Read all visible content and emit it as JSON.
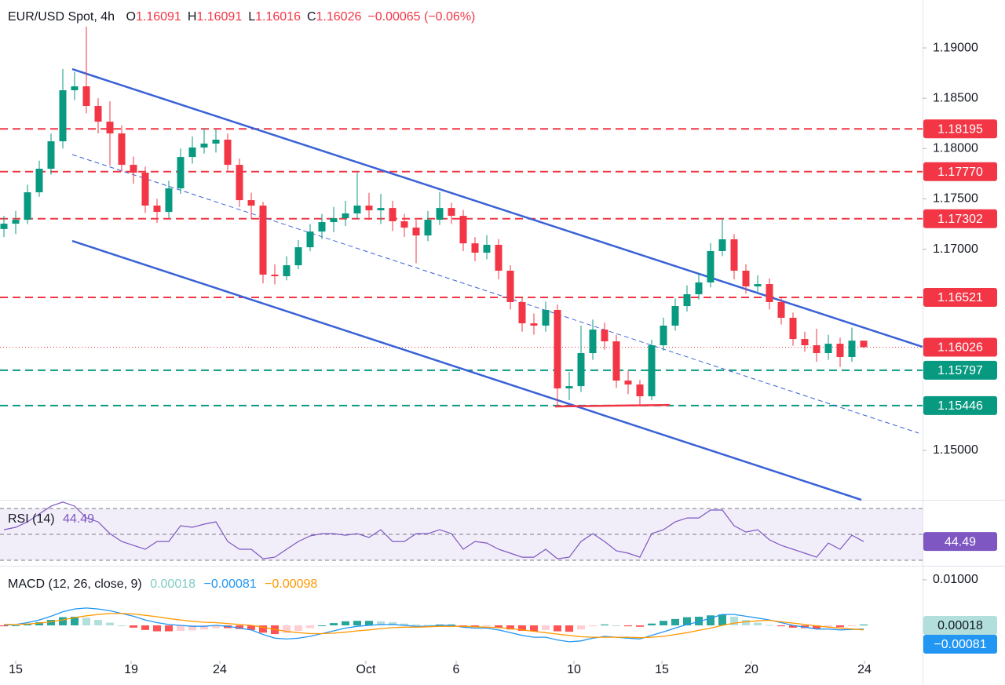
{
  "chart_data": [
    {
      "type": "candlestick",
      "title": "EUR/USD Spot, 4h",
      "legend": [
        {
          "key": "O",
          "value": "1.16091"
        },
        {
          "key": "H",
          "value": "1.16091"
        },
        {
          "key": "L",
          "value": "1.16016"
        },
        {
          "key": "C",
          "value": "1.16026"
        }
      ],
      "change": "−0.00065 (−0.06%)",
      "up_color": "#089981",
      "down_color": "#f23645",
      "xlim": [
        -0.333,
        78
      ],
      "xticks": [
        {
          "value": 1,
          "label": "15"
        },
        {
          "value": 10.8,
          "label": "19"
        },
        {
          "value": 18.33,
          "label": "24"
        },
        {
          "value": 30.73,
          "label": "Oct"
        },
        {
          "value": 38.4,
          "label": "6"
        },
        {
          "value": 48.4,
          "label": "10"
        },
        {
          "value": 55.87,
          "label": "15"
        },
        {
          "value": 63.47,
          "label": "20"
        },
        {
          "value": 73.07,
          "label": "24"
        }
      ],
      "ylim": [
        1.14509,
        1.19476
      ],
      "yticks": [
        {
          "value": 1.19,
          "label": "1.19000"
        },
        {
          "value": 1.185,
          "label": "1.18500"
        },
        {
          "value": 1.18,
          "label": "1.18000"
        },
        {
          "value": 1.175,
          "label": "1.17500"
        },
        {
          "value": 1.17,
          "label": "1.17000"
        },
        {
          "value": 1.15,
          "label": "1.15000"
        }
      ],
      "open": [
        1.172,
        1.17253,
        1.17292,
        1.17565,
        1.17799,
        1.18072,
        1.18579,
        1.18618,
        1.18423,
        1.18267,
        1.1815,
        1.17838,
        1.1776,
        1.17433,
        1.1737,
        1.17604,
        1.17916,
        1.1801,
        1.18049,
        1.18088,
        1.17838,
        1.17487,
        1.17433,
        1.16747,
        1.16731,
        1.1684,
        1.17019,
        1.17175,
        1.17269,
        1.17308,
        1.17355,
        1.17433,
        1.17386,
        1.17409,
        1.17277,
        1.17214,
        1.17136,
        1.17292,
        1.17409,
        1.17331,
        1.17058,
        1.16965,
        1.17043,
        1.16786,
        1.16474,
        1.16263,
        1.1624,
        1.16396,
        1.15616,
        1.15639,
        1.15967,
        1.16201,
        1.16084,
        1.15694,
        1.15655,
        1.15538,
        1.16045,
        1.1624,
        1.16435,
        1.16552,
        1.16669,
        1.16981,
        1.17098,
        1.16786,
        1.1663,
        1.16653,
        1.16474,
        1.16318,
        1.16107,
        1.16045,
        1.15967,
        1.1606,
        1.15928,
        1.16091
      ],
      "high": [
        1.1733,
        1.1738,
        1.1764,
        1.1788,
        1.1815,
        1.1879,
        1.1876,
        1.1921,
        1.185,
        1.1847,
        1.1823,
        1.1792,
        1.1782,
        1.175,
        1.1768,
        1.18,
        1.1812,
        1.182,
        1.1819,
        1.1815,
        1.179,
        1.1756,
        1.1747,
        1.1685,
        1.1693,
        1.1709,
        1.1725,
        1.1735,
        1.1742,
        1.1748,
        1.1776,
        1.1756,
        1.1755,
        1.1748,
        1.1735,
        1.1729,
        1.1738,
        1.1757,
        1.1746,
        1.1739,
        1.1712,
        1.1714,
        1.171,
        1.1684,
        1.1652,
        1.1636,
        1.1648,
        1.1645,
        1.1578,
        1.1624,
        1.163,
        1.1627,
        1.1615,
        1.1579,
        1.157,
        1.161,
        1.1632,
        1.1651,
        1.1664,
        1.1676,
        1.1706,
        1.173,
        1.1715,
        1.1685,
        1.1674,
        1.1671,
        1.1653,
        1.1637,
        1.1618,
        1.1621,
        1.1615,
        1.1612,
        1.1622,
        1.16091
      ],
      "low": [
        1.1712,
        1.1715,
        1.1725,
        1.1752,
        1.1774,
        1.18,
        1.1848,
        1.1835,
        1.1815,
        1.1783,
        1.1777,
        1.1765,
        1.1736,
        1.1726,
        1.1731,
        1.1755,
        1.1785,
        1.1795,
        1.1796,
        1.1778,
        1.1742,
        1.173,
        1.1666,
        1.1665,
        1.1669,
        1.168,
        1.1698,
        1.171,
        1.1717,
        1.1723,
        1.173,
        1.1729,
        1.1725,
        1.1718,
        1.1712,
        1.1686,
        1.1708,
        1.1724,
        1.1725,
        1.1698,
        1.1688,
        1.169,
        1.167,
        1.164,
        1.1618,
        1.1615,
        1.1618,
        1.15446,
        1.155,
        1.1558,
        1.159,
        1.16,
        1.1562,
        1.1556,
        1.15446,
        1.155,
        1.1599,
        1.1619,
        1.1638,
        1.165,
        1.1662,
        1.1693,
        1.167,
        1.1656,
        1.1656,
        1.164,
        1.1625,
        1.1604,
        1.1598,
        1.1588,
        1.159,
        1.1583,
        1.1588,
        1.16016
      ],
      "close": [
        1.17253,
        1.17292,
        1.17565,
        1.17799,
        1.18072,
        1.18579,
        1.18618,
        1.18423,
        1.18267,
        1.1815,
        1.17838,
        1.1776,
        1.17433,
        1.1737,
        1.17604,
        1.17916,
        1.1801,
        1.18049,
        1.18088,
        1.17838,
        1.17487,
        1.17433,
        1.16747,
        1.16731,
        1.1684,
        1.17019,
        1.17175,
        1.17269,
        1.17308,
        1.17355,
        1.17433,
        1.17386,
        1.17409,
        1.17277,
        1.17214,
        1.17136,
        1.17292,
        1.17409,
        1.17331,
        1.17058,
        1.16965,
        1.17043,
        1.16786,
        1.16474,
        1.16263,
        1.1624,
        1.16396,
        1.15616,
        1.15639,
        1.15967,
        1.16201,
        1.16084,
        1.15694,
        1.15655,
        1.15538,
        1.16045,
        1.1624,
        1.16435,
        1.16552,
        1.16669,
        1.16981,
        1.17098,
        1.16786,
        1.1663,
        1.16653,
        1.16474,
        1.16318,
        1.16107,
        1.16045,
        1.15967,
        1.1606,
        1.15928,
        1.16091,
        1.16026
      ],
      "levels": [
        {
          "price": 1.18195,
          "color": "#f23645"
        },
        {
          "price": 1.1777,
          "label": "1.17770",
          "color": "#f23645"
        },
        {
          "price": 1.17302,
          "color": "#f23645"
        },
        {
          "price": 1.16521,
          "color": "#f23645"
        },
        {
          "price": 1.15797,
          "color": "#089981"
        },
        {
          "price": 1.15446,
          "color": "#089981"
        }
      ],
      "last_price": 1.16026,
      "last_color": "#f23645",
      "trendlines": [
        {
          "points": [
            [
              5.8,
              1.18789
            ],
            [
              78,
              1.16029
            ]
          ],
          "color": "#3a62d6",
          "dashed": false
        },
        {
          "points": [
            [
              5.8,
              1.17082
            ],
            [
              72.8,
              1.14509
            ]
          ],
          "color": "#3a62d6",
          "dashed": false
        },
        {
          "points": [
            [
              5.8,
              1.1794
            ],
            [
              77.67,
              1.15172
            ]
          ],
          "color": "#3a62d6",
          "dashed": true
        },
        {
          "points": [
            [
              46.8,
              1.15437
            ],
            [
              56.53,
              1.15452
            ]
          ],
          "color": "#f23645",
          "dashed": false
        }
      ]
    },
    {
      "type": "line",
      "title": "RSI (14)",
      "color": "#7e57c2",
      "ylim": [
        26.4,
        76.1
      ],
      "yticks": [
        30,
        50,
        70
      ],
      "band": [
        30,
        70
      ],
      "values": [
        53.6,
        55.5,
        59.7,
        65.8,
        71.8,
        75,
        71.8,
        62.7,
        59.7,
        50.6,
        44.5,
        41.5,
        38.5,
        44.5,
        44.5,
        56.7,
        55.5,
        57.9,
        59.7,
        44.5,
        38.5,
        38.5,
        31.2,
        32.4,
        38.5,
        44.5,
        48.8,
        50.6,
        50.6,
        49.4,
        50.6,
        47.6,
        53.6,
        44.5,
        44.5,
        50.6,
        50.6,
        53.6,
        50.6,
        38.5,
        44.5,
        43.3,
        38.5,
        35.5,
        32.4,
        32.4,
        38.5,
        31.2,
        32.4,
        44.5,
        50.6,
        44.5,
        37.3,
        35.5,
        32.4,
        50.6,
        53.6,
        59.7,
        62.7,
        62.7,
        68.8,
        68.8,
        56.7,
        51.8,
        53.6,
        45.8,
        41.5,
        38.5,
        35.5,
        32.4,
        43.3,
        38.5,
        49.4,
        44.49
      ]
    },
    {
      "type": "macd",
      "title": "MACD (12, 26, close, 9)",
      "ylim": [
        -0.0074,
        0.0124
      ],
      "yticks": [
        {
          "value": 0.01,
          "label": "0.01000"
        }
      ],
      "histogram": {
        "colors": [
          "#26a69a",
          "#b2dfdb",
          "#ff5252",
          "#ffcdd2"
        ],
        "last_label": "0.00018",
        "label_color": "#b2dfdb",
        "values": [
          -0.0002,
          0,
          0.0003,
          0.0007,
          0.0012,
          0.0018,
          0.0019,
          0.0017,
          0.0012,
          0.0006,
          0,
          -0.0005,
          -0.001,
          -0.0013,
          -0.0013,
          -0.0012,
          -0.0011,
          -0.0009,
          -0.0006,
          -0.0006,
          -0.0008,
          -0.001,
          -0.0016,
          -0.0019,
          -0.0017,
          -0.0012,
          -0.0006,
          0,
          0.0005,
          0.0009,
          0.001,
          0.001,
          0.0009,
          0.0007,
          0.0004,
          0.0002,
          0.0001,
          0.0002,
          0.0002,
          -0.0002,
          -0.0003,
          -0.0002,
          -0.0005,
          -0.0009,
          -0.0012,
          -0.0013,
          -0.001,
          -0.0013,
          -0.0014,
          -0.0009,
          -0.0002,
          0.0002,
          0,
          -0.0002,
          -0.0003,
          0.0004,
          0.001,
          0.0014,
          0.0018,
          0.0019,
          0.0022,
          0.0024,
          0.0019,
          0.0012,
          0.0006,
          0.0001,
          -0.0002,
          -0.0005,
          -0.0006,
          -0.0007,
          -0.0004,
          -0.0004,
          -0.0001,
          0.00018
        ]
      },
      "macd_line": {
        "color": "#2196f3",
        "last_label": "−0.00081",
        "values": [
          0,
          0.0002,
          0.0006,
          0.0012,
          0.002,
          0.003,
          0.0036,
          0.0038,
          0.0036,
          0.0032,
          0.0026,
          0.002,
          0.0012,
          0.0006,
          0.0002,
          0,
          -0.0002,
          -0.0002,
          0,
          -0.0002,
          -0.0006,
          -0.001,
          -0.002,
          -0.0028,
          -0.003,
          -0.0028,
          -0.0024,
          -0.0018,
          -0.0012,
          -0.0006,
          -0.0002,
          0,
          0.0002,
          0.0002,
          0,
          -0.0002,
          -0.0002,
          0,
          0,
          -0.0004,
          -0.0006,
          -0.0006,
          -0.001,
          -0.0016,
          -0.0022,
          -0.0026,
          -0.0026,
          -0.0032,
          -0.0036,
          -0.0034,
          -0.0028,
          -0.0024,
          -0.0026,
          -0.0028,
          -0.003,
          -0.0022,
          -0.0014,
          -0.0006,
          0.0002,
          0.0008,
          0.0016,
          0.0024,
          0.0024,
          0.002,
          0.0016,
          0.0012,
          0.0006,
          0,
          -0.0004,
          -0.0008,
          -0.0008,
          -0.001,
          -0.0009,
          -0.00081
        ]
      },
      "signal_line": {
        "color": "#ff9800",
        "last_label": "−0.00098",
        "values": [
          0.0002,
          0.0002,
          0.0003,
          0.0005,
          0.0008,
          0.0012,
          0.0017,
          0.0021,
          0.0024,
          0.0026,
          0.0026,
          0.0025,
          0.0022,
          0.0019,
          0.0015,
          0.0012,
          0.0009,
          0.0007,
          0.0006,
          0.0004,
          0.0002,
          0,
          -0.0004,
          -0.0009,
          -0.0013,
          -0.0016,
          -0.0018,
          -0.0018,
          -0.0017,
          -0.0015,
          -0.0012,
          -0.001,
          -0.0007,
          -0.0005,
          -0.0004,
          -0.0004,
          -0.0003,
          -0.0002,
          -0.0002,
          -0.0002,
          -0.0003,
          -0.0004,
          -0.0005,
          -0.0007,
          -0.001,
          -0.0013,
          -0.0016,
          -0.0019,
          -0.0022,
          -0.0025,
          -0.0026,
          -0.0026,
          -0.0026,
          -0.0026,
          -0.0027,
          -0.0026,
          -0.0024,
          -0.002,
          -0.0016,
          -0.0011,
          -0.0006,
          0,
          0.0005,
          0.0008,
          0.001,
          0.0011,
          0.0008,
          0.0005,
          0.0002,
          -0.0001,
          -0.0004,
          -0.0006,
          -0.0008,
          -0.00098
        ]
      }
    }
  ]
}
